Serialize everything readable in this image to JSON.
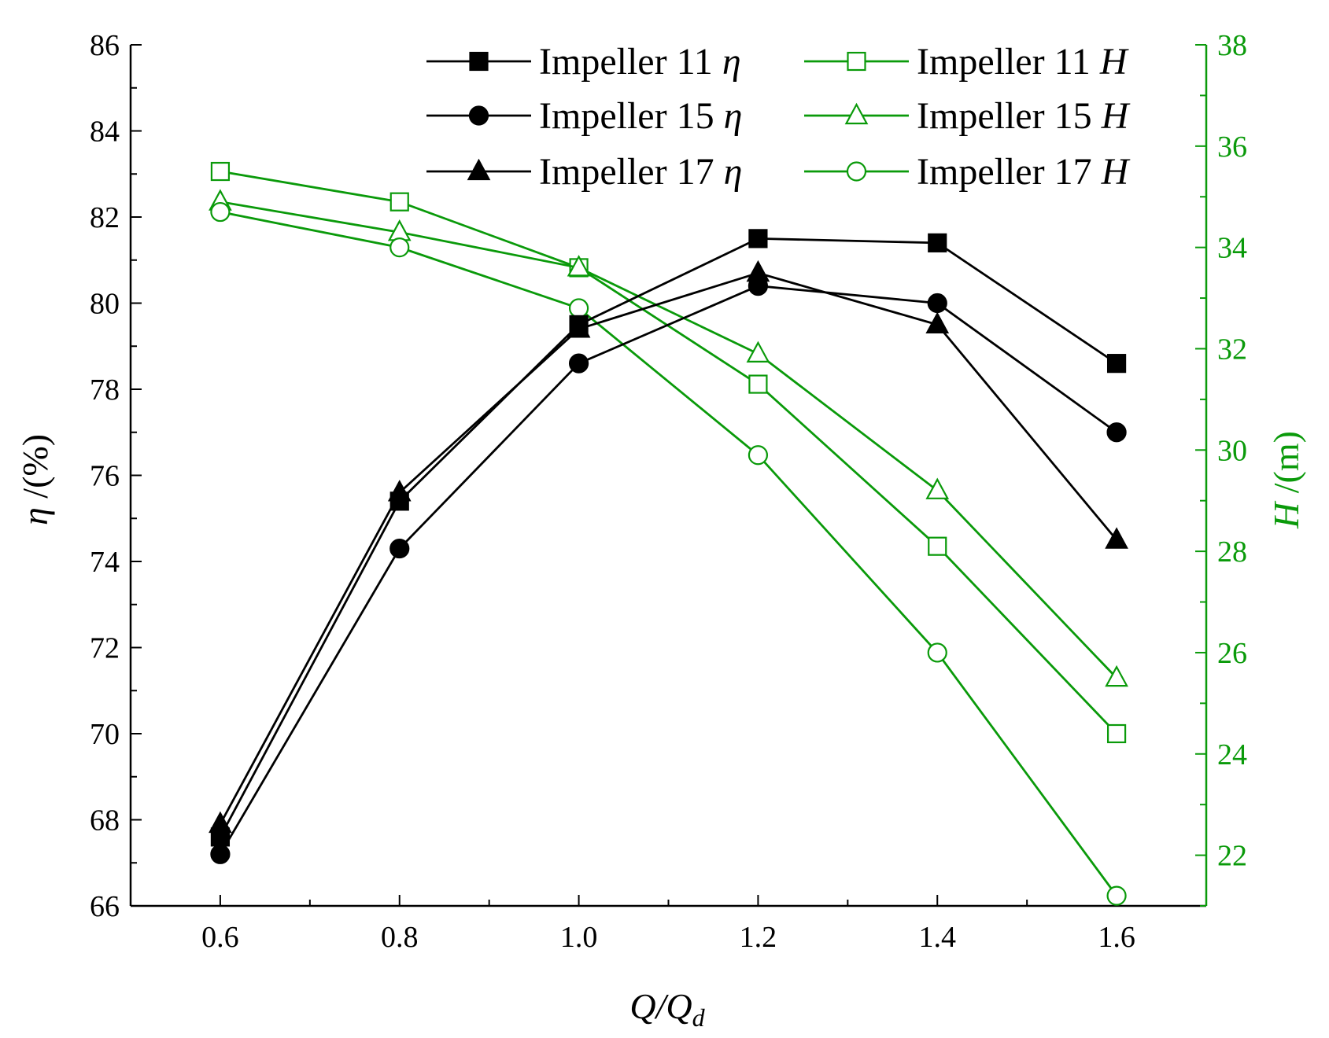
{
  "chart_data": {
    "type": "line",
    "x": [
      0.6,
      0.8,
      1.0,
      1.2,
      1.4,
      1.6
    ],
    "xlim": [
      0.5,
      1.7
    ],
    "x_ticks": [
      "0.6",
      "0.8",
      "1.0",
      "1.2",
      "1.4",
      "1.6"
    ],
    "xlabel": {
      "main": "Q/Q",
      "sub": "d"
    },
    "y_left": {
      "label": {
        "symbol": "η",
        "unit": " /(%)"
      },
      "lim": [
        66,
        86
      ],
      "ticks": [
        "66",
        "68",
        "70",
        "72",
        "74",
        "76",
        "78",
        "80",
        "82",
        "84",
        "86"
      ]
    },
    "y_right": {
      "label": {
        "symbol": "H",
        "unit": " /(m)"
      },
      "lim": [
        21,
        38
      ],
      "ticks": [
        "22",
        "24",
        "26",
        "28",
        "30",
        "32",
        "34",
        "36",
        "38"
      ],
      "color": "#0a9a0a"
    },
    "series": [
      {
        "name": "Impeller 11 η",
        "legend_base": "Impeller 11 ",
        "legend_sym": "η",
        "axis": "left",
        "marker": "square",
        "filled": true,
        "color": "#000000",
        "values": [
          67.6,
          75.4,
          79.5,
          81.5,
          81.4,
          78.6
        ]
      },
      {
        "name": "Impeller 15 η",
        "legend_base": "Impeller 15 ",
        "legend_sym": "η",
        "axis": "left",
        "marker": "circle",
        "filled": true,
        "color": "#000000",
        "values": [
          67.2,
          74.3,
          78.6,
          80.4,
          80.0,
          77.0
        ]
      },
      {
        "name": "Impeller 17 η",
        "legend_base": "Impeller 17 ",
        "legend_sym": "η",
        "axis": "left",
        "marker": "triangle",
        "filled": true,
        "color": "#000000",
        "values": [
          67.9,
          75.6,
          79.4,
          80.7,
          79.5,
          74.5
        ]
      },
      {
        "name": "Impeller 11 H",
        "legend_base": "Impeller 11 ",
        "legend_sym": "H",
        "axis": "right",
        "marker": "square",
        "filled": false,
        "color": "#0a9a0a",
        "values": [
          35.5,
          34.9,
          33.6,
          31.3,
          28.1,
          24.4
        ]
      },
      {
        "name": "Impeller 15 H",
        "legend_base": "Impeller 15 ",
        "legend_sym": "H",
        "axis": "right",
        "marker": "triangle",
        "filled": false,
        "color": "#0a9a0a",
        "values": [
          34.9,
          34.3,
          33.6,
          31.9,
          29.2,
          25.5
        ]
      },
      {
        "name": "Impeller 17 H",
        "legend_base": "Impeller 17 ",
        "legend_sym": "H",
        "axis": "right",
        "marker": "circle",
        "filled": false,
        "color": "#0a9a0a",
        "values": [
          34.7,
          34.0,
          32.8,
          29.9,
          26.0,
          21.2
        ]
      }
    ],
    "legend_position": "top-right"
  }
}
